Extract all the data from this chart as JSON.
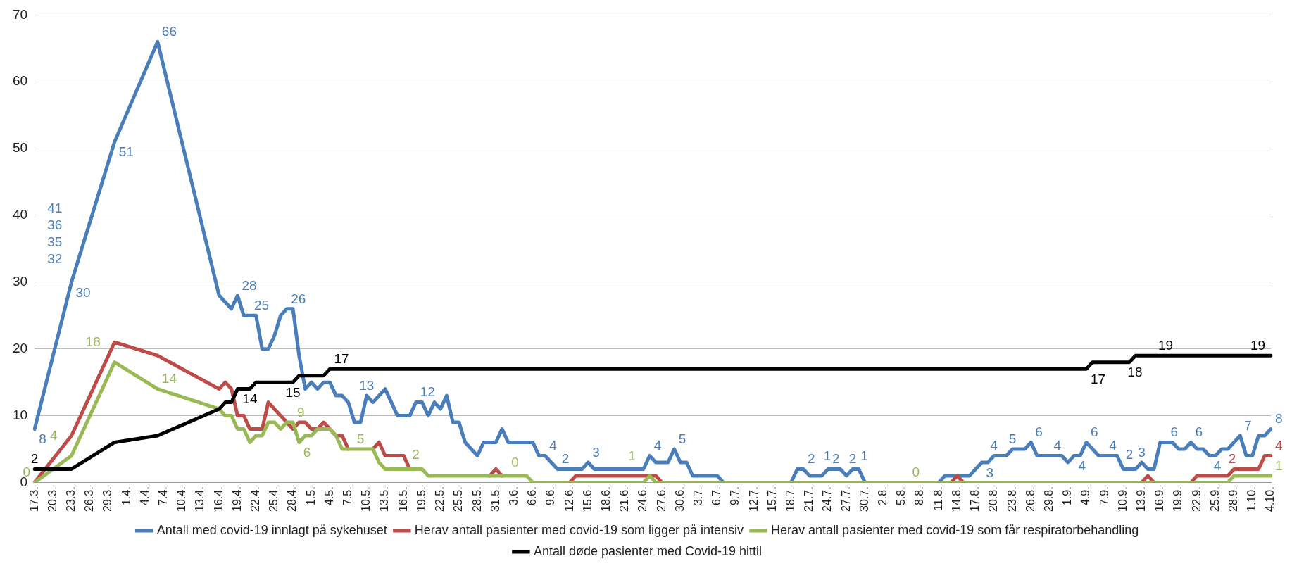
{
  "chart_data": {
    "type": "line",
    "legend": "bottom",
    "grid": "y",
    "ylim": [
      0,
      70
    ],
    "yticks": [
      0,
      10,
      20,
      30,
      40,
      50,
      60,
      70
    ],
    "categories": [
      "17.3.",
      null,
      null,
      "20.3.",
      null,
      null,
      "23.3.",
      null,
      null,
      "26.3.",
      null,
      null,
      "29.3.",
      null,
      null,
      "1.4.",
      null,
      null,
      "4.4.",
      null,
      null,
      "7.4.",
      null,
      null,
      "10.4.",
      null,
      null,
      "13.4.",
      null,
      null,
      "16.4.",
      null,
      null,
      "19.4.",
      null,
      null,
      "22.4.",
      null,
      null,
      "25.4.",
      null,
      null,
      "28.4.",
      null,
      null,
      "1.5.",
      null,
      null,
      "4.5.",
      null,
      null,
      "7.5.",
      null,
      null,
      "10.5.",
      null,
      null,
      "13.5.",
      null,
      null,
      "16.5.",
      null,
      null,
      "19.5.",
      null,
      null,
      "22.5.",
      null,
      null,
      "25.5.",
      null,
      null,
      "28.5.",
      null,
      null,
      "31.5.",
      null,
      null,
      "3.6.",
      null,
      null,
      "6.6.",
      null,
      null,
      "9.6.",
      null,
      null,
      "12.6.",
      null,
      null,
      "15.6.",
      null,
      null,
      "18.6.",
      null,
      null,
      "21.6.",
      null,
      null,
      "24.6.",
      null,
      null,
      "27.6.",
      null,
      null,
      "30.6.",
      null,
      null,
      "3.7.",
      null,
      null,
      "6.7.",
      null,
      null,
      "9.7.",
      null,
      null,
      "12.7.",
      null,
      null,
      "15.7.",
      null,
      null,
      "18.7.",
      null,
      null,
      "21.7.",
      null,
      null,
      "24.7.",
      null,
      null,
      "27.7.",
      null,
      null,
      "30.7.",
      null,
      null,
      "2.8.",
      null,
      null,
      "5.8.",
      null,
      null,
      "8.8.",
      null,
      null,
      "11.8.",
      null,
      null,
      "14.8.",
      null,
      null,
      "17.8.",
      null,
      null,
      "20.8.",
      null,
      null,
      "23.8.",
      null,
      null,
      "26.8.",
      null,
      null,
      "29.8.",
      null,
      null,
      "1.9.",
      null,
      null,
      "4.9.",
      null,
      null,
      "7.9.",
      null,
      null,
      "10.9.",
      null,
      null,
      "13.9.",
      null,
      null,
      "16.9.",
      null,
      null,
      "19.9.",
      null,
      null,
      "22.9.",
      null,
      null,
      "25.9.",
      null,
      null,
      "28.9.",
      null,
      null,
      "1.10.",
      null,
      null,
      "4.10."
    ],
    "series": [
      {
        "name": "Antall med covid-19 innlagt på sykehuset",
        "color": "#4a7ebb",
        "values": [
          8,
          null,
          null,
          null,
          null,
          null,
          30,
          null,
          null,
          null,
          null,
          null,
          null,
          51,
          null,
          null,
          null,
          null,
          null,
          null,
          66,
          null,
          null,
          null,
          null,
          null,
          null,
          null,
          null,
          null,
          28,
          27,
          26,
          28,
          25,
          25,
          25,
          20,
          20,
          22,
          25,
          26,
          26,
          19,
          14,
          15,
          14,
          15,
          15,
          13,
          13,
          12,
          9,
          9,
          13,
          12,
          13,
          14,
          12,
          10,
          10,
          10,
          12,
          12,
          10,
          12,
          11,
          13,
          9,
          9,
          6,
          5,
          4,
          6,
          6,
          6,
          8,
          6,
          6,
          6,
          6,
          6,
          4,
          4,
          3,
          2,
          2,
          2,
          2,
          2,
          3,
          2,
          2,
          2,
          2,
          2,
          2,
          2,
          2,
          2,
          4,
          3,
          3,
          3,
          5,
          3,
          3,
          1,
          1,
          1,
          1,
          1,
          0,
          null,
          null,
          null,
          null,
          null,
          null,
          null,
          null,
          null,
          null,
          0,
          2,
          2,
          1,
          1,
          1,
          2,
          2,
          2,
          1,
          2,
          2,
          0,
          null,
          null,
          null,
          null,
          null,
          null,
          null,
          null,
          null,
          null,
          null,
          0,
          1,
          1,
          1,
          1,
          1,
          2,
          3,
          3,
          4,
          4,
          4,
          5,
          5,
          5,
          6,
          4,
          4,
          4,
          4,
          4,
          3,
          4,
          4,
          6,
          5,
          4,
          4,
          4,
          4,
          2,
          2,
          2,
          3,
          2,
          2,
          6,
          6,
          6,
          5,
          5,
          6,
          5,
          5,
          4,
          4,
          5,
          5,
          6,
          7,
          4,
          4,
          7,
          7,
          8
        ],
        "value_labels": [
          "8",
          null,
          null,
          null,
          null,
          null,
          "30",
          null,
          null,
          null,
          null,
          null,
          null,
          "51",
          null,
          null,
          null,
          null,
          null,
          null,
          "66",
          null,
          null,
          null,
          null,
          null,
          null,
          null,
          null,
          null,
          null,
          null,
          null,
          "28",
          null,
          "25",
          null,
          null,
          null,
          null,
          null,
          "26",
          null,
          null,
          null,
          null,
          null,
          null,
          null,
          null,
          null,
          null,
          null,
          null,
          "13",
          null,
          null,
          null,
          null,
          null,
          null,
          null,
          "12",
          null,
          null,
          null,
          null,
          null,
          null,
          null,
          null,
          null,
          null,
          null,
          null,
          null,
          null,
          null,
          null,
          null,
          null,
          null,
          null,
          "4",
          null,
          "2",
          null,
          null,
          null,
          null,
          "3",
          null,
          null,
          null,
          null,
          null,
          null,
          null,
          null,
          null,
          "4",
          null,
          null,
          null,
          "5",
          null,
          null,
          null,
          null,
          null,
          null,
          null,
          null,
          null,
          null,
          null,
          null,
          null,
          null,
          null,
          null,
          null,
          null,
          null,
          null,
          "2",
          "1",
          null,
          null,
          "2",
          null,
          null,
          "1",
          "2",
          null,
          null,
          null,
          null,
          null,
          null,
          null,
          null,
          null,
          null,
          null,
          null,
          null,
          null,
          null,
          null,
          null,
          null,
          null,
          null,
          "3",
          null,
          "4",
          null,
          null,
          "5",
          null,
          null,
          "6",
          null,
          null,
          "4",
          null,
          null,
          null,
          "4",
          null,
          "6",
          null,
          null,
          "4",
          null,
          null,
          null,
          "2",
          null,
          "3",
          null,
          null,
          null,
          "6",
          null,
          null,
          null,
          "6",
          null,
          null,
          "4",
          null,
          null,
          null,
          null,
          "7",
          null,
          null,
          null,
          null,
          "8"
        ]
      },
      {
        "name": "Herav antall pasienter med covid-19 som ligger på intensiv",
        "color": "#be4b48",
        "values": [
          0,
          null,
          null,
          null,
          null,
          null,
          7,
          null,
          null,
          null,
          null,
          null,
          null,
          21,
          null,
          null,
          null,
          null,
          null,
          null,
          19,
          null,
          null,
          null,
          null,
          null,
          null,
          null,
          null,
          null,
          14,
          15,
          14,
          10,
          10,
          8,
          8,
          8,
          12,
          11,
          10,
          9,
          8,
          9,
          9,
          8,
          8,
          9,
          8,
          7,
          7,
          5,
          null,
          null,
          null,
          5,
          6,
          4,
          4,
          4,
          4,
          2,
          null,
          null,
          null,
          null,
          null,
          null,
          null,
          null,
          null,
          null,
          null,
          null,
          1,
          2,
          1,
          null,
          null,
          null,
          null,
          null,
          null,
          null,
          null,
          null,
          null,
          0,
          1,
          1,
          1,
          1,
          1,
          1,
          1,
          1,
          1,
          1,
          1,
          1,
          1,
          1,
          0,
          null,
          null,
          null,
          null,
          null,
          null,
          null,
          null,
          null,
          null,
          null,
          null,
          null,
          null,
          null,
          null,
          null,
          null,
          null,
          null,
          null,
          null,
          null,
          null,
          null,
          null,
          null,
          null,
          null,
          null,
          null,
          null,
          null,
          null,
          null,
          null,
          null,
          null,
          null,
          null,
          null,
          null,
          null,
          null,
          null,
          null,
          0,
          1,
          0,
          null,
          null,
          null,
          null,
          null,
          null,
          null,
          null,
          null,
          null,
          null,
          null,
          null,
          null,
          null,
          null,
          null,
          null,
          null,
          null,
          null,
          null,
          null,
          null,
          null,
          null,
          null,
          null,
          0,
          1,
          0,
          null,
          null,
          null,
          null,
          null,
          0,
          1,
          1,
          1,
          1,
          1,
          1,
          2,
          2,
          2,
          2,
          2,
          4,
          4
        ],
        "value_labels": [
          null,
          null,
          null,
          null,
          null,
          null,
          null,
          null,
          null,
          null,
          null,
          null,
          null,
          null,
          null,
          null,
          null,
          null,
          null,
          null,
          null,
          null,
          null,
          null,
          null,
          null,
          null,
          null,
          null,
          null,
          null,
          null,
          null,
          null,
          null,
          null,
          null,
          null,
          null,
          null,
          null,
          null,
          null,
          null,
          null,
          null,
          null,
          null,
          null,
          null,
          null,
          null,
          null,
          null,
          null,
          null,
          null,
          null,
          null,
          null,
          null,
          null,
          null,
          null,
          null,
          null,
          null,
          null,
          null,
          null,
          null,
          null,
          null,
          null,
          null,
          null,
          null,
          null,
          null,
          null,
          null,
          null,
          null,
          null,
          null,
          null,
          null,
          null,
          null,
          null,
          null,
          null,
          null,
          null,
          null,
          null,
          null,
          null,
          null,
          null,
          null,
          null,
          null,
          null,
          null,
          null,
          null,
          null,
          null,
          null,
          null,
          null,
          null,
          null,
          null,
          null,
          null,
          null,
          null,
          null,
          null,
          null,
          null,
          null,
          null,
          null,
          null,
          null,
          null,
          null,
          null,
          null,
          null,
          null,
          null,
          null,
          null,
          null,
          null,
          null,
          null,
          null,
          null,
          null,
          null,
          null,
          null,
          null,
          null,
          null,
          null,
          null,
          null,
          null,
          null,
          null,
          null,
          null,
          null,
          null,
          null,
          null,
          null,
          null,
          null,
          null,
          null,
          null,
          null,
          null,
          null,
          null,
          null,
          null,
          null,
          null,
          null,
          null,
          null,
          null,
          null,
          null,
          null,
          null,
          null,
          null,
          null,
          null,
          null,
          null,
          null,
          null,
          null,
          null,
          null,
          null,
          "2",
          null,
          null,
          null,
          null,
          "4"
        ]
      },
      {
        "name": "Herav antall pasienter med covid-19 som får respiratorbehandling",
        "color": "#98b954",
        "values": [
          0,
          null,
          null,
          null,
          null,
          null,
          4,
          null,
          null,
          null,
          null,
          null,
          null,
          18,
          null,
          null,
          null,
          null,
          null,
          null,
          14,
          null,
          null,
          null,
          null,
          null,
          null,
          null,
          null,
          null,
          11,
          10,
          10,
          8,
          8,
          6,
          7,
          7,
          9,
          9,
          8,
          9,
          9,
          6,
          7,
          7,
          8,
          8,
          8,
          7,
          5,
          5,
          5,
          5,
          5,
          5,
          3,
          2,
          2,
          2,
          2,
          2,
          2,
          2,
          1,
          1,
          1,
          1,
          1,
          1,
          1,
          1,
          1,
          1,
          1,
          1,
          1,
          1,
          1,
          1,
          1,
          0,
          0,
          0,
          0,
          0,
          0,
          0,
          0,
          0,
          0,
          0,
          0,
          0,
          0,
          0,
          0,
          0,
          0,
          0,
          1,
          0,
          0,
          0,
          0,
          0,
          0,
          0,
          0,
          0,
          0,
          0,
          0,
          0,
          0,
          0,
          0,
          0,
          0,
          0,
          0,
          0,
          0,
          0,
          0,
          0,
          0,
          0,
          0,
          0,
          0,
          0,
          0,
          0,
          0,
          0,
          0,
          0,
          0,
          0,
          0,
          0,
          0,
          0,
          0,
          0,
          0,
          0,
          0,
          0,
          0,
          0,
          0,
          0,
          0,
          0,
          0,
          0,
          0,
          0,
          0,
          0,
          0,
          0,
          0,
          0,
          0,
          0,
          0,
          0,
          0,
          0,
          0,
          0,
          0,
          0,
          0,
          0,
          0,
          0,
          0,
          0,
          0,
          0,
          0,
          0,
          0,
          0,
          0,
          0,
          0,
          0,
          0,
          0,
          0,
          1,
          1,
          1,
          1,
          1,
          1,
          1
        ],
        "value_labels": [
          "0",
          null,
          null,
          null,
          null,
          null,
          "4",
          null,
          null,
          null,
          null,
          null,
          null,
          "18",
          null,
          null,
          null,
          null,
          null,
          null,
          "14",
          null,
          null,
          null,
          null,
          null,
          null,
          null,
          null,
          null,
          null,
          null,
          null,
          null,
          null,
          null,
          null,
          null,
          null,
          null,
          null,
          null,
          "9",
          "6",
          null,
          null,
          null,
          null,
          null,
          null,
          null,
          null,
          null,
          "5",
          null,
          null,
          null,
          null,
          null,
          null,
          "2",
          null,
          null,
          null,
          null,
          null,
          null,
          null,
          null,
          null,
          null,
          null,
          null,
          null,
          null,
          null,
          null,
          null,
          null,
          null,
          null,
          "0",
          null,
          null,
          null,
          null,
          null,
          null,
          null,
          null,
          null,
          null,
          null,
          null,
          null,
          null,
          null,
          null,
          null,
          null,
          "1",
          null,
          null,
          null,
          null,
          null,
          null,
          null,
          null,
          null,
          null,
          null,
          null,
          null,
          null,
          null,
          null,
          null,
          null,
          null,
          null,
          null,
          null,
          null,
          null,
          null,
          null,
          null,
          null,
          null,
          null,
          null,
          null,
          null,
          null,
          null,
          null,
          null,
          null,
          null,
          null,
          null,
          "0",
          null,
          null,
          null,
          null,
          null,
          null,
          null,
          null,
          null,
          null,
          null,
          null,
          null,
          null,
          null,
          null,
          null,
          null,
          null,
          null,
          null,
          null,
          null,
          null,
          null,
          null,
          null,
          null,
          null,
          null,
          null,
          null,
          null,
          null,
          null,
          null,
          null,
          null,
          null,
          null,
          null,
          null,
          null,
          null,
          null,
          null,
          null,
          null,
          null,
          null,
          null,
          null,
          null,
          null,
          null,
          null,
          null,
          null,
          "1"
        ]
      },
      {
        "name": "Antall døde pasienter med Covid-19 hittil",
        "color": "#000000",
        "values": [
          2,
          null,
          null,
          null,
          null,
          null,
          2,
          null,
          null,
          null,
          null,
          null,
          null,
          6,
          null,
          null,
          null,
          null,
          null,
          null,
          7,
          null,
          null,
          null,
          null,
          null,
          null,
          null,
          null,
          null,
          11,
          12,
          12,
          14,
          14,
          14,
          15,
          15,
          15,
          15,
          15,
          15,
          15,
          16,
          16,
          16,
          16,
          16,
          17,
          17,
          17,
          17,
          17,
          17,
          17,
          17,
          17,
          17,
          17,
          17,
          17,
          17,
          17,
          17,
          17,
          17,
          17,
          17,
          17,
          17,
          17,
          17,
          17,
          17,
          17,
          17,
          17,
          17,
          17,
          17,
          17,
          17,
          17,
          17,
          17,
          17,
          17,
          17,
          17,
          17,
          17,
          17,
          17,
          17,
          17,
          17,
          17,
          17,
          17,
          17,
          17,
          17,
          17,
          17,
          17,
          17,
          17,
          17,
          17,
          17,
          17,
          17,
          17,
          17,
          17,
          17,
          17,
          17,
          17,
          17,
          17,
          17,
          17,
          17,
          17,
          17,
          17,
          17,
          17,
          17,
          17,
          17,
          17,
          17,
          17,
          17,
          17,
          17,
          17,
          17,
          17,
          17,
          17,
          17,
          17,
          17,
          17,
          17,
          17,
          17,
          17,
          17,
          17,
          17,
          17,
          17,
          17,
          17,
          17,
          17,
          17,
          17,
          17,
          17,
          17,
          17,
          17,
          17,
          17,
          17,
          17,
          17,
          18,
          18,
          18,
          18,
          18,
          18,
          18,
          19,
          19,
          19,
          19,
          19,
          19,
          19,
          19,
          19,
          19,
          19,
          19,
          19,
          19,
          19,
          19,
          19,
          19,
          19,
          19,
          19,
          19,
          19
        ],
        "value_labels": [
          "2",
          null,
          null,
          null,
          null,
          null,
          null,
          null,
          null,
          null,
          null,
          null,
          null,
          null,
          null,
          null,
          null,
          null,
          null,
          null,
          null,
          null,
          null,
          null,
          null,
          null,
          null,
          null,
          null,
          null,
          null,
          null,
          null,
          null,
          null,
          "14",
          null,
          null,
          null,
          null,
          null,
          null,
          "15",
          null,
          null,
          null,
          null,
          null,
          "17",
          null,
          null,
          null,
          null,
          null,
          null,
          null,
          null,
          null,
          null,
          null,
          null,
          null,
          null,
          null,
          null,
          null,
          null,
          null,
          null,
          null,
          null,
          null,
          null,
          null,
          null,
          null,
          null,
          null,
          null,
          null,
          null,
          null,
          null,
          null,
          null,
          null,
          null,
          null,
          null,
          null,
          null,
          null,
          null,
          null,
          null,
          null,
          null,
          null,
          null,
          null,
          null,
          null,
          null,
          null,
          null,
          null,
          null,
          null,
          null,
          null,
          null,
          null,
          null,
          null,
          null,
          null,
          null,
          null,
          null,
          null,
          null,
          null,
          null,
          null,
          null,
          null,
          null,
          null,
          null,
          null,
          null,
          null,
          null,
          null,
          null,
          null,
          null,
          null,
          null,
          null,
          null,
          null,
          null,
          null,
          null,
          null,
          null,
          null,
          null,
          null,
          null,
          null,
          null,
          null,
          null,
          null,
          null,
          null,
          null,
          null,
          null,
          null,
          null,
          null,
          null,
          null,
          null,
          null,
          null,
          null,
          null,
          "17",
          null,
          null,
          null,
          null,
          null,
          "18",
          null,
          null,
          null,
          null,
          "19",
          null,
          null,
          null,
          null,
          null,
          null,
          null,
          null,
          null,
          null,
          null,
          null,
          null,
          null,
          "19",
          null,
          null,
          null,
          null
        ]
      }
    ],
    "annotations": [
      "41",
      "36",
      "35",
      "32"
    ]
  }
}
